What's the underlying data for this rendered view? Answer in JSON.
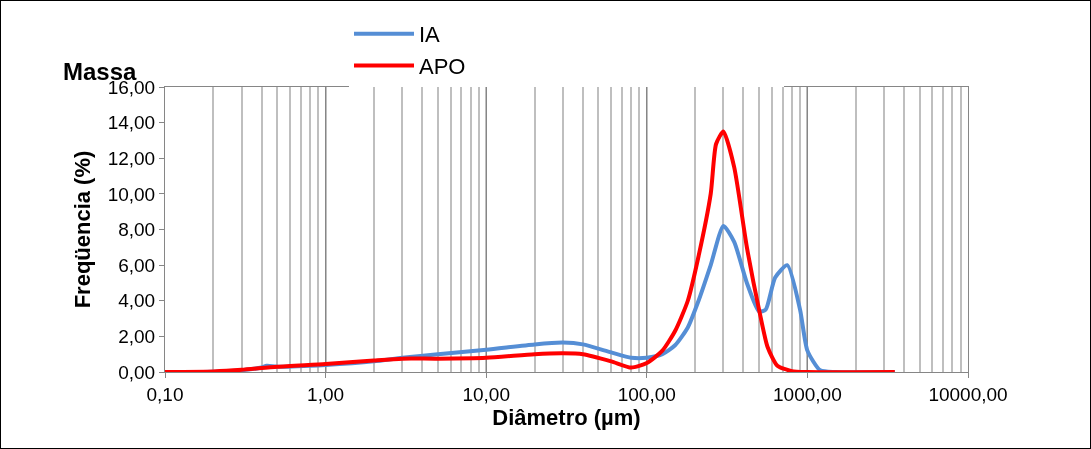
{
  "chart_data": {
    "type": "line",
    "title": "Massa",
    "xlabel": "Diâmetro (µm)",
    "ylabel": "Freqüencia (%)",
    "log": "x",
    "grid": "x",
    "legend": "top",
    "marker": "none",
    "line_style": "solid",
    "xlim": [
      0.1,
      10000
    ],
    "xticks": [
      {
        "value": 0.1,
        "label": "0,10"
      },
      {
        "value": 1,
        "label": "1,00"
      },
      {
        "value": 10,
        "label": "10,00"
      },
      {
        "value": 100,
        "label": "100,00"
      },
      {
        "value": 1000,
        "label": "1000,00"
      },
      {
        "value": 10000,
        "label": "10000,00"
      }
    ],
    "ylim": [
      0,
      16
    ],
    "yticks": [
      {
        "value": 0,
        "label": "0,00"
      },
      {
        "value": 2,
        "label": "2,00"
      },
      {
        "value": 4,
        "label": "4,00"
      },
      {
        "value": 6,
        "label": "6,00"
      },
      {
        "value": 8,
        "label": "8,00"
      },
      {
        "value": 10,
        "label": "10,00"
      },
      {
        "value": 12,
        "label": "12,00"
      },
      {
        "value": 14,
        "label": "14,00"
      },
      {
        "value": 16,
        "label": "16,00"
      }
    ],
    "series": [
      {
        "name": "IA",
        "color": "#558ed5",
        "x": [
          0.1,
          0.2,
          0.3,
          0.4,
          0.43,
          0.5,
          1,
          2,
          3,
          5,
          10,
          20,
          30,
          40,
          60,
          80,
          100,
          125,
          150,
          180,
          210,
          250,
          300,
          350,
          420,
          500,
          550,
          630,
          750,
          900,
          1000,
          1200,
          1500,
          3500
        ],
        "values": [
          0,
          0.02,
          0.1,
          0.25,
          0.35,
          0.3,
          0.4,
          0.6,
          0.8,
          1.0,
          1.25,
          1.55,
          1.65,
          1.55,
          1.1,
          0.8,
          0.8,
          1.0,
          1.5,
          2.5,
          4.0,
          6.0,
          8.2,
          7.3,
          5.0,
          3.4,
          3.5,
          5.3,
          6.0,
          3.5,
          1.2,
          0.1,
          0,
          0
        ]
      },
      {
        "name": "APO",
        "color": "#ff0000",
        "x": [
          0.1,
          0.2,
          0.3,
          0.5,
          1,
          2,
          3,
          5,
          10,
          20,
          30,
          40,
          60,
          80,
          100,
          125,
          150,
          180,
          210,
          250,
          270,
          300,
          350,
          420,
          500,
          565,
          650,
          800,
          1000,
          3500
        ],
        "values": [
          0,
          0.03,
          0.12,
          0.3,
          0.45,
          0.65,
          0.75,
          0.75,
          0.8,
          1.0,
          1.05,
          1.0,
          0.6,
          0.25,
          0.5,
          1.2,
          2.3,
          4.0,
          6.5,
          10.0,
          12.8,
          13.5,
          11.5,
          7.0,
          3.5,
          1.4,
          0.35,
          0.05,
          0,
          0
        ]
      }
    ]
  }
}
